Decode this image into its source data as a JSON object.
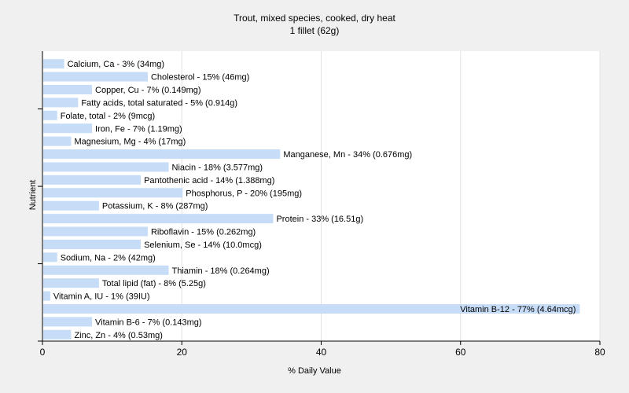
{
  "chart_data": {
    "type": "bar",
    "orientation": "horizontal",
    "title": "Trout, mixed species, cooked, dry heat",
    "subtitle": "1 fillet (62g)",
    "xlabel": "% Daily Value",
    "ylabel": "Nutrient",
    "xlim": [
      0,
      80
    ],
    "xticks": [
      "0",
      "20",
      "40",
      "60",
      "80"
    ],
    "grid": true,
    "legend": "none",
    "bar_color": "#c6dcf7",
    "categories": [
      "Calcium, Ca",
      "Cholesterol",
      "Copper, Cu",
      "Fatty acids, total saturated",
      "Folate, total",
      "Iron, Fe",
      "Magnesium, Mg",
      "Manganese, Mn",
      "Niacin",
      "Pantothenic acid",
      "Phosphorus, P",
      "Potassium, K",
      "Protein",
      "Riboflavin",
      "Selenium, Se",
      "Sodium, Na",
      "Thiamin",
      "Total lipid (fat)",
      "Vitamin A, IU",
      "Vitamin B-12",
      "Vitamin B-6",
      "Zinc, Zn"
    ],
    "values": [
      3,
      15,
      7,
      5,
      2,
      7,
      4,
      34,
      18,
      14,
      20,
      8,
      33,
      15,
      14,
      2,
      18,
      8,
      1,
      77,
      7,
      4
    ],
    "data_labels": [
      "Calcium, Ca - 3% (34mg)",
      "Cholesterol - 15% (46mg)",
      "Copper, Cu - 7% (0.149mg)",
      "Fatty acids, total saturated - 5% (0.914g)",
      "Folate, total - 2% (9mcg)",
      "Iron, Fe - 7% (1.19mg)",
      "Magnesium, Mg - 4% (17mg)",
      "Manganese, Mn - 34% (0.676mg)",
      "Niacin - 18% (3.577mg)",
      "Pantothenic acid - 14% (1.388mg)",
      "Phosphorus, P - 20% (195mg)",
      "Potassium, K - 8% (287mg)",
      "Protein - 33% (16.51g)",
      "Riboflavin - 15% (0.262mg)",
      "Selenium, Se - 14% (10.0mcg)",
      "Sodium, Na - 2% (42mg)",
      "Thiamin - 18% (0.264mg)",
      "Total lipid (fat) - 8% (5.25g)",
      "Vitamin A, IU - 1% (39IU)",
      "Vitamin B-12 - 77% (4.64mcg)",
      "Vitamin B-6 - 7% (0.143mg)",
      "Zinc, Zn - 4% (0.53mg)"
    ]
  }
}
